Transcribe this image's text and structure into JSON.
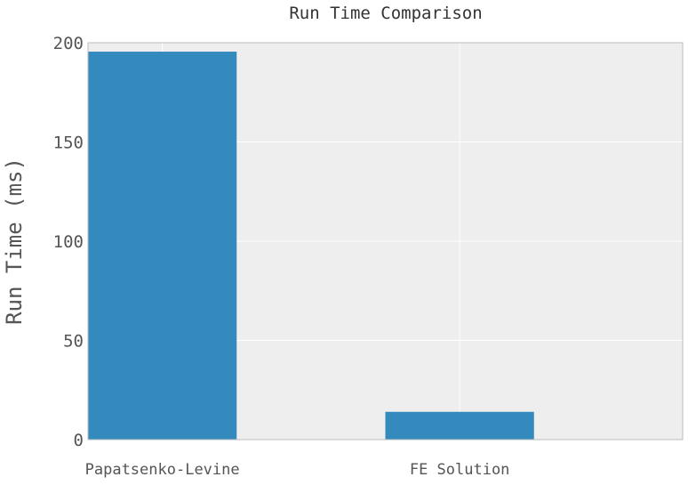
{
  "chart_data": {
    "type": "bar",
    "title": "Run Time Comparison",
    "xlabel": "",
    "ylabel": "Run Time (ms)",
    "categories": [
      "Papatsenko-Levine",
      "FE Solution"
    ],
    "values": [
      195.5,
      14
    ],
    "ylim": [
      0,
      200
    ],
    "yticks": [
      "0",
      "50",
      "100",
      "150",
      "200"
    ],
    "grid": true,
    "colors": {
      "bar": "#348abd",
      "plot_background": "#eeeeee",
      "grid": "#ffffff",
      "frame": "#bcbcbc"
    }
  }
}
